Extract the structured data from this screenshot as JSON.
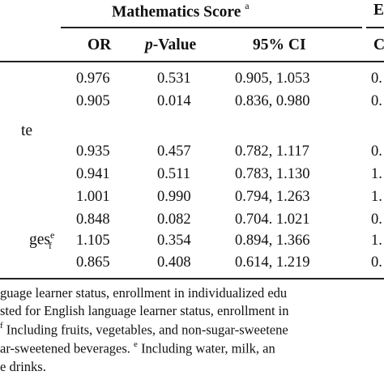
{
  "header": {
    "group_title": "Mathematics Score",
    "group_title_marker": "a",
    "next_group_fragment": "E"
  },
  "columns": {
    "or": "OR",
    "p_value_italic": "p",
    "p_value_rest": "-Value",
    "ci": "95% CI",
    "next_fragment": "C"
  },
  "row_labels": {
    "label_te": "te",
    "label_ges": "ges",
    "label_ges_marker": "e",
    "label_f_marker": "f"
  },
  "rows": [
    {
      "or": "0.976",
      "p": "0.531",
      "ci": "0.905, 1.053",
      "next": "0."
    },
    {
      "or": "0.905",
      "p": "0.014",
      "ci": "0.836, 0.980",
      "next": "0."
    },
    {
      "or": "0.935",
      "p": "0.457",
      "ci": "0.782, 1.117",
      "next": "0."
    },
    {
      "or": "0.941",
      "p": "0.511",
      "ci": "0.783, 1.130",
      "next": "1."
    },
    {
      "or": "1.001",
      "p": "0.990",
      "ci": "0.794, 1.263",
      "next": "1."
    },
    {
      "or": "0.848",
      "p": "0.082",
      "ci": "0.704. 1.021",
      "next": "0."
    },
    {
      "or": "1.105",
      "p": "0.354",
      "ci": "0.894, 1.366",
      "next": "1."
    },
    {
      "or": "0.865",
      "p": "0.408",
      "ci": "0.614, 1.219",
      "next": "0."
    }
  ],
  "footnotes": {
    "line1": "guage learner status, enrollment in individualized edu",
    "line2": "sted for English language learner status, enrollment in",
    "line3_marker": "f",
    "line3": " Including fruits, vegetables, and non-sugar-sweetene",
    "line4a": "ar-sweetened beverages. ",
    "line4_marker": "e",
    "line4b": " Including water, milk, an",
    "line5": "e drinks."
  }
}
